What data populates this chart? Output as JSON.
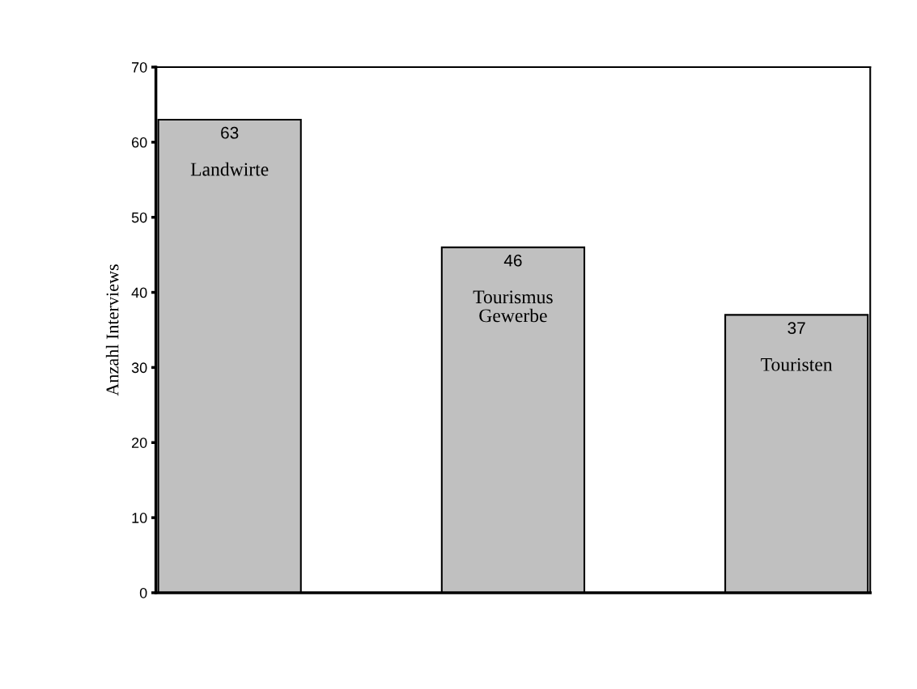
{
  "chart_data": {
    "type": "bar",
    "ylabel": "Anzahl Interviews",
    "categories": [
      "Landwirte",
      "Tourismus\nGewerbe",
      "Touristen"
    ],
    "values": [
      63,
      46,
      37
    ],
    "color": "#c0c0c0",
    "ylim": [
      0,
      70
    ],
    "yticks": [
      0,
      10,
      20,
      30,
      40,
      50,
      60,
      70
    ],
    "data_labels": true,
    "grid": false,
    "legend": false
  }
}
